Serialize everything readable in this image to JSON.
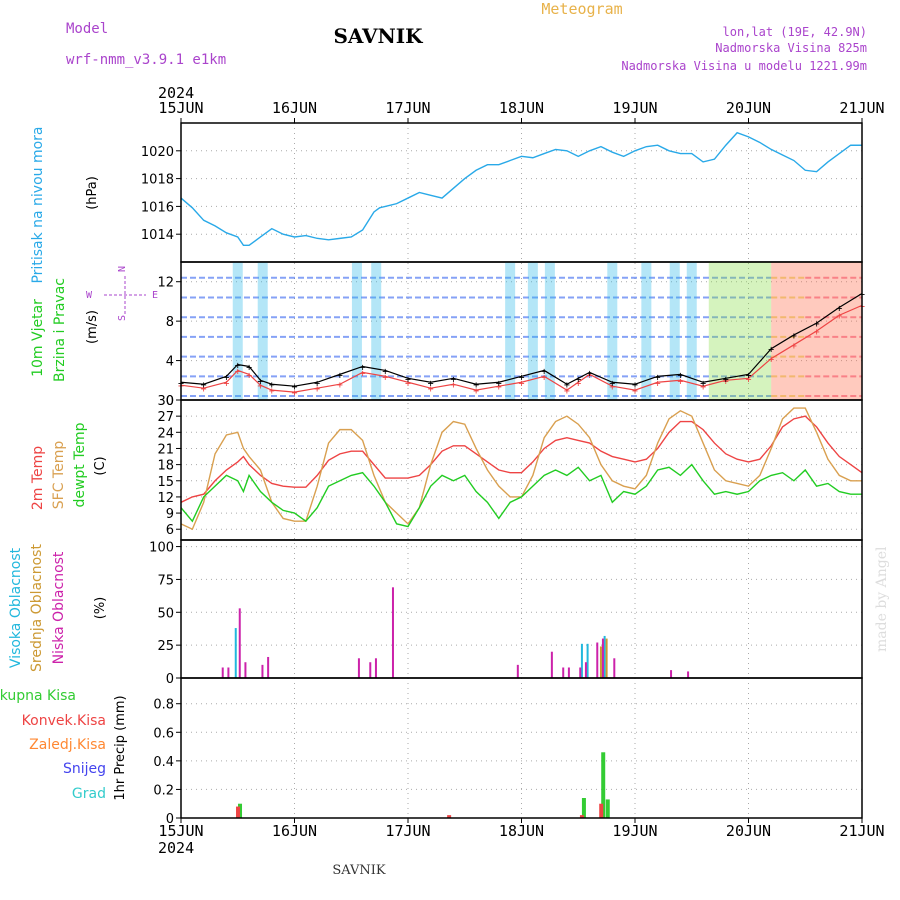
{
  "header": {
    "model_label": "Model",
    "model_name": "wrf-nmm_v3.9.1 e1km",
    "station": "SAVNIK",
    "product": "Meteogram",
    "lonlat": "lon,lat (19E, 42.9N)",
    "elevation": "Nadmorska Visina 825m",
    "model_elevation": "Nadmorska Visina u modelu 1221.99m",
    "year": "2024",
    "footer_station": "SAVNIK",
    "credit": "made by Angel"
  },
  "colors": {
    "pressure": "#29a9e8",
    "temp2m": "#ee4444",
    "sfc_temp": "#d9a050",
    "dewpoint": "#22cc22",
    "high_cloud": "#22b8dd",
    "mid_cloud": "#cc9933",
    "low_cloud": "#cc22aa",
    "total_precip": "#33cc33",
    "conv_precip": "#ee4444",
    "frz_precip": "#ff8833",
    "snow": "#4444ee",
    "hail": "#33cccc",
    "purple_text": "#aa44cc",
    "title_orange": "#e8b24a"
  },
  "chart_data": [
    {
      "type": "line",
      "panel": "pressure",
      "ylabel_rot": "Pritisak na nivou mora",
      "unit": "(hPa)",
      "xticks": [
        "15JUN",
        "16JUN",
        "17JUN",
        "18JUN",
        "19JUN",
        "20JUN",
        "21JUN"
      ],
      "ylim": [
        1012,
        1022
      ],
      "yticks": [
        1014,
        1016,
        1018,
        1020
      ],
      "grid": true,
      "series": [
        {
          "key": "pressure",
          "x": [
            0,
            0.1,
            0.2,
            0.3,
            0.4,
            0.5,
            0.55,
            0.6,
            0.7,
            0.8,
            0.9,
            1.0,
            1.1,
            1.2,
            1.3,
            1.4,
            1.5,
            1.6,
            1.7,
            1.75,
            1.8,
            1.9,
            2.0,
            2.1,
            2.2,
            2.3,
            2.4,
            2.5,
            2.6,
            2.7,
            2.8,
            2.9,
            3.0,
            3.1,
            3.2,
            3.3,
            3.4,
            3.5,
            3.6,
            3.7,
            3.8,
            3.9,
            4.0,
            4.1,
            4.2,
            4.3,
            4.4,
            4.5,
            4.6,
            4.7,
            4.8,
            4.9,
            5.0,
            5.1,
            5.2,
            5.3,
            5.4,
            5.5,
            5.6,
            5.7,
            5.8,
            5.9,
            6.0
          ],
          "y": [
            1016.6,
            1015.9,
            1015.0,
            1014.6,
            1014.1,
            1013.8,
            1013.2,
            1013.2,
            1013.8,
            1014.4,
            1014.0,
            1013.8,
            1013.9,
            1013.7,
            1013.6,
            1013.7,
            1013.8,
            1014.3,
            1015.6,
            1015.9,
            1016.0,
            1016.2,
            1016.6,
            1017.0,
            1016.8,
            1016.6,
            1017.3,
            1018.0,
            1018.6,
            1019.0,
            1019.0,
            1019.3,
            1019.6,
            1019.5,
            1019.8,
            1020.1,
            1020.0,
            1019.6,
            1020.0,
            1020.3,
            1019.9,
            1019.6,
            1020.0,
            1020.3,
            1020.4,
            1020.0,
            1019.8,
            1019.8,
            1019.2,
            1019.4,
            1020.4,
            1021.3,
            1021.0,
            1020.6,
            1020.1,
            1019.7,
            1019.3,
            1018.6,
            1018.5,
            1019.2,
            1019.8,
            1020.4,
            1020.4
          ]
        }
      ]
    },
    {
      "type": "scatter",
      "panel": "wind",
      "ylabel_rot": [
        "10m Vjetar",
        "Brzina i Pravac"
      ],
      "unit": "(m/s)",
      "compass": {
        "n": "N",
        "s": "S",
        "e": "E",
        "w": "W"
      },
      "ylim": [
        0,
        14
      ],
      "yticks": [
        0,
        4,
        8,
        12
      ],
      "grid": true,
      "series": [
        {
          "key": "speed_avg",
          "x": [
            0,
            0.2,
            0.4,
            0.5,
            0.6,
            0.7,
            0.8,
            1.0,
            1.2,
            1.4,
            1.6,
            1.8,
            2.0,
            2.2,
            2.4,
            2.6,
            2.8,
            3.0,
            3.2,
            3.4,
            3.5,
            3.6,
            3.8,
            4.0,
            4.2,
            4.4,
            4.6,
            4.8,
            5.0,
            5.2,
            5.4,
            5.6,
            5.8,
            6.0
          ],
          "y": [
            1.5,
            1.2,
            1.8,
            3.0,
            2.6,
            1.5,
            1.0,
            0.8,
            1.2,
            1.6,
            2.8,
            2.4,
            1.8,
            1.2,
            1.6,
            1.0,
            1.4,
            1.8,
            2.4,
            1.0,
            1.8,
            2.6,
            1.4,
            1.0,
            1.8,
            2.0,
            1.4,
            2.0,
            2.2,
            4.2,
            5.6,
            7.0,
            8.6,
            9.6
          ]
        },
        {
          "key": "gust",
          "x": [
            0,
            0.2,
            0.4,
            0.5,
            0.6,
            0.7,
            0.8,
            1.0,
            1.2,
            1.4,
            1.6,
            1.8,
            2.0,
            2.2,
            2.4,
            2.6,
            2.8,
            3.0,
            3.2,
            3.4,
            3.5,
            3.6,
            3.8,
            4.0,
            4.2,
            4.4,
            4.6,
            4.8,
            5.0,
            5.2,
            5.4,
            5.6,
            5.8,
            6.0
          ],
          "y": [
            1.8,
            1.6,
            2.4,
            3.6,
            3.4,
            2.0,
            1.6,
            1.4,
            1.8,
            2.6,
            3.4,
            3.0,
            2.2,
            1.8,
            2.2,
            1.6,
            1.8,
            2.4,
            3.0,
            1.6,
            2.2,
            2.8,
            1.8,
            1.6,
            2.4,
            2.6,
            1.8,
            2.2,
            2.6,
            5.2,
            6.6,
            7.8,
            9.4,
            10.8
          ]
        }
      ]
    },
    {
      "type": "line",
      "panel": "temperature",
      "ylabel_rot": [
        "2m Temp",
        "SFC Temp",
        "dewpt Temp"
      ],
      "unit": "(C)",
      "ylim": [
        4,
        30
      ],
      "yticks": [
        6,
        9,
        12,
        15,
        18,
        21,
        24,
        27,
        30
      ],
      "grid": true,
      "series": [
        {
          "key": "temp2m",
          "x": [
            0,
            0.1,
            0.2,
            0.3,
            0.4,
            0.5,
            0.55,
            0.6,
            0.7,
            0.8,
            0.9,
            1.0,
            1.1,
            1.2,
            1.3,
            1.4,
            1.5,
            1.6,
            1.7,
            1.8,
            1.9,
            2.0,
            2.1,
            2.2,
            2.3,
            2.4,
            2.5,
            2.6,
            2.7,
            2.8,
            2.9,
            3.0,
            3.1,
            3.2,
            3.3,
            3.4,
            3.5,
            3.6,
            3.7,
            3.8,
            3.9,
            4.0,
            4.1,
            4.2,
            4.3,
            4.4,
            4.5,
            4.6,
            4.7,
            4.8,
            4.9,
            5.0,
            5.1,
            5.2,
            5.3,
            5.4,
            5.5,
            5.6,
            5.7,
            5.8,
            5.9,
            6.0
          ],
          "y": [
            11,
            12,
            12.5,
            15,
            17,
            18.5,
            19.5,
            18,
            16,
            14.5,
            14,
            13.8,
            13.8,
            16,
            18.8,
            20,
            20.5,
            20.5,
            18,
            15.5,
            15.5,
            15.5,
            16,
            18,
            20.5,
            21.5,
            21.5,
            20,
            18.5,
            17,
            16.5,
            16.5,
            18.5,
            21,
            22.5,
            23,
            22.5,
            22,
            20.5,
            19.5,
            19,
            18.5,
            19,
            21,
            24,
            26,
            26,
            24.5,
            22,
            20,
            19,
            18.5,
            19,
            21.5,
            25,
            26.5,
            27,
            25,
            22,
            19.5,
            18,
            16.5
          ]
        },
        {
          "key": "sfc_temp",
          "x": [
            0,
            0.1,
            0.2,
            0.3,
            0.4,
            0.5,
            0.55,
            0.6,
            0.7,
            0.8,
            0.9,
            1.0,
            1.1,
            1.2,
            1.3,
            1.4,
            1.5,
            1.6,
            1.7,
            1.8,
            1.9,
            2.0,
            2.1,
            2.2,
            2.3,
            2.4,
            2.5,
            2.6,
            2.7,
            2.8,
            2.9,
            3.0,
            3.1,
            3.2,
            3.3,
            3.4,
            3.5,
            3.6,
            3.7,
            3.8,
            3.9,
            4.0,
            4.1,
            4.2,
            4.3,
            4.4,
            4.5,
            4.6,
            4.7,
            4.8,
            4.9,
            5.0,
            5.1,
            5.2,
            5.3,
            5.4,
            5.5,
            5.6,
            5.7,
            5.8,
            5.9,
            6.0
          ],
          "y": [
            7,
            6,
            11,
            20,
            23.5,
            24,
            21,
            19.5,
            17,
            11,
            8,
            7.5,
            7.5,
            14,
            22,
            24.5,
            24.5,
            22.5,
            16,
            11,
            9,
            7,
            10,
            18,
            24,
            26,
            25.5,
            21,
            17,
            14,
            12,
            12,
            16,
            23,
            26,
            27,
            25.5,
            23,
            18,
            15,
            14,
            13.5,
            16,
            22,
            26.5,
            28,
            27,
            22,
            17,
            15,
            14.5,
            14,
            16,
            21,
            26.5,
            28.5,
            28.5,
            24,
            19,
            16,
            15,
            15
          ]
        },
        {
          "key": "dewpoint",
          "x": [
            0,
            0.1,
            0.2,
            0.3,
            0.4,
            0.5,
            0.55,
            0.6,
            0.7,
            0.8,
            0.9,
            1.0,
            1.1,
            1.2,
            1.3,
            1.4,
            1.5,
            1.6,
            1.7,
            1.8,
            1.9,
            2.0,
            2.1,
            2.2,
            2.3,
            2.4,
            2.5,
            2.6,
            2.7,
            2.8,
            2.9,
            3.0,
            3.1,
            3.2,
            3.3,
            3.4,
            3.5,
            3.6,
            3.7,
            3.8,
            3.9,
            4.0,
            4.1,
            4.2,
            4.3,
            4.4,
            4.5,
            4.6,
            4.7,
            4.8,
            4.9,
            5.0,
            5.1,
            5.2,
            5.3,
            5.4,
            5.5,
            5.6,
            5.7,
            5.8,
            5.9,
            6.0
          ],
          "y": [
            10,
            7.5,
            12,
            14,
            16,
            15,
            13,
            16,
            13,
            11,
            9.5,
            9,
            7.5,
            10,
            14,
            15,
            16,
            16.5,
            14,
            11,
            7,
            6.5,
            10,
            14,
            16,
            15,
            16,
            13,
            11,
            8,
            11,
            12,
            14,
            16,
            17,
            16,
            17.5,
            15,
            16,
            11,
            13,
            12.5,
            14,
            17,
            17.5,
            16,
            18,
            15,
            12.5,
            13,
            12.5,
            13,
            15,
            16,
            16.5,
            15,
            17,
            14,
            14.5,
            13,
            12.5,
            12.5
          ]
        }
      ]
    },
    {
      "type": "bar",
      "panel": "cloud",
      "ylabel_rot": [
        "Visoka Oblacnost",
        "Srednja Oblacnost",
        "Niska Oblacnost"
      ],
      "unit": "(%)",
      "ylim": [
        0,
        105
      ],
      "yticks": [
        0,
        25,
        50,
        75,
        100
      ],
      "grid": true,
      "series": [
        {
          "key": "high_cloud",
          "x": [
            0.5,
            3.55,
            3.6,
            3.75
          ],
          "y": [
            38,
            26,
            26,
            32
          ]
        },
        {
          "key": "mid_cloud",
          "x": [
            3.7,
            3.75
          ],
          "y": [
            24,
            30
          ]
        },
        {
          "key": "low_cloud",
          "x": [
            0.35,
            0.4,
            0.5,
            0.55,
            0.7,
            0.75,
            1.55,
            1.65,
            1.7,
            1.85,
            2.95,
            3.25,
            3.35,
            3.4,
            3.5,
            3.55,
            3.65,
            3.7,
            3.8,
            4.3,
            4.45
          ],
          "y": [
            8,
            8,
            53,
            12,
            10,
            16,
            15,
            12,
            15,
            69,
            10,
            20,
            8,
            8,
            8,
            12,
            27,
            30,
            15,
            6,
            5
          ]
        }
      ]
    },
    {
      "type": "bar",
      "panel": "precip",
      "ylabel_rot": "1hr Precip (mm)",
      "legend": [
        "Ukupna Kisa",
        "Konvek.Kisa",
        "Zaledj.Kisa",
        "Snijeg",
        "Grad"
      ],
      "ylim": [
        0,
        0.98
      ],
      "yticks": [
        0,
        0.2,
        0.4,
        0.6,
        0.8
      ],
      "grid": true,
      "series": [
        {
          "key": "total_precip",
          "x": [
            0.52,
            3.55,
            3.72,
            3.76
          ],
          "y": [
            0.1,
            0.14,
            0.46,
            0.13
          ]
        },
        {
          "key": "conv_precip",
          "x": [
            0.52,
            2.38,
            3.55,
            3.72
          ],
          "y": [
            0.08,
            0.02,
            0.02,
            0.1
          ]
        }
      ]
    }
  ]
}
